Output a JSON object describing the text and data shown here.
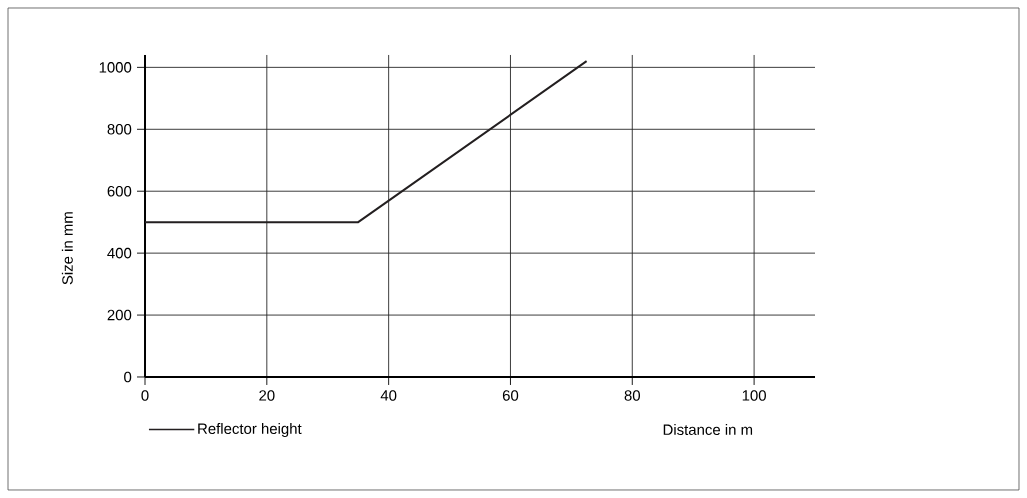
{
  "chart_data": {
    "type": "line",
    "xlabel": "Distance in m",
    "ylabel": "Size in mm",
    "x": [
      0,
      35,
      72.5
    ],
    "xlim": [
      0,
      110
    ],
    "ylim": [
      0,
      1040
    ],
    "xticks": [
      0,
      20,
      40,
      60,
      80,
      100
    ],
    "yticks": [
      0,
      200,
      400,
      600,
      800,
      1000
    ],
    "series": [
      {
        "name": "Reflector height",
        "color": "#231f20",
        "values": [
          500,
          500,
          1020
        ]
      }
    ],
    "grid": true,
    "legend": "bottom left",
    "marker": "none",
    "line_style": "solid"
  }
}
